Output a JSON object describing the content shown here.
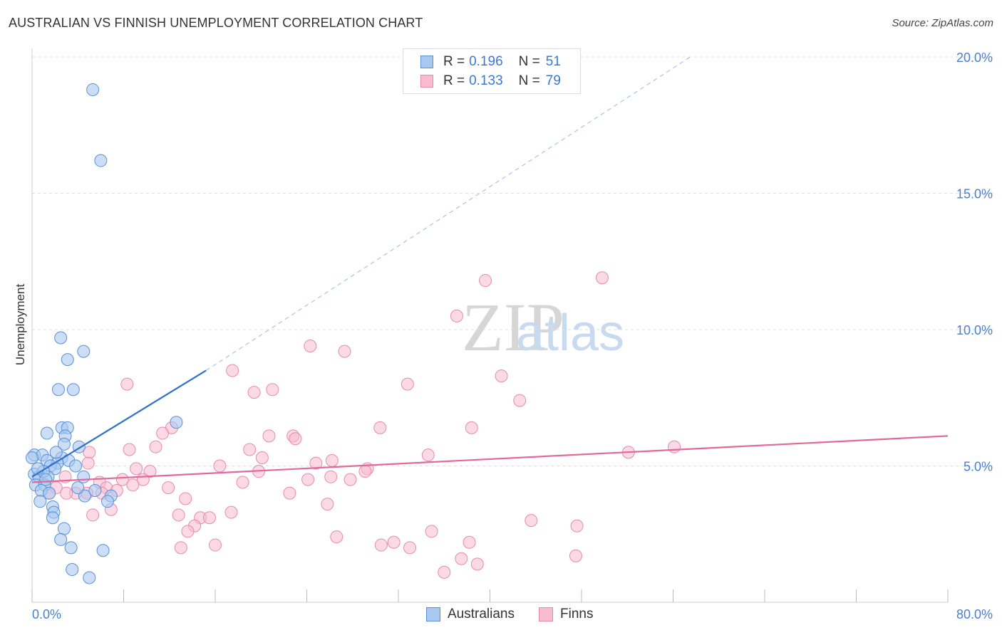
{
  "title": "AUSTRALIAN VS FINNISH UNEMPLOYMENT CORRELATION CHART",
  "source": "Source: ZipAtlas.com",
  "watermark": {
    "zip": "ZIP",
    "atlas": "atlas"
  },
  "legend": {
    "rows": [
      {
        "r_label": "R =",
        "r_value": "0.196",
        "n_label": "N =",
        "n_value": "51"
      },
      {
        "r_label": "R =",
        "r_value": "0.133",
        "n_label": "N =",
        "n_value": "79"
      }
    ]
  },
  "bottom_legend": {
    "australians": "Australians",
    "finns": "Finns"
  },
  "colors": {
    "australians_fill": "#a9c8f0",
    "australians_stroke": "#5a90d8",
    "australians_line": "#2f72cc",
    "finns_fill": "#f7bcd0",
    "finns_stroke": "#e88aaa",
    "finns_line": "#e06a98",
    "tick_text": "#4a7fd0",
    "grid": "#dddddd"
  },
  "chart_data": {
    "type": "scatter",
    "title": "AUSTRALIAN VS FINNISH UNEMPLOYMENT CORRELATION CHART",
    "xlabel": "",
    "ylabel": "Unemployment",
    "xlim": [
      0,
      80
    ],
    "ylim": [
      0,
      20
    ],
    "x_tick_labels": {
      "min": "0.0%",
      "max": "80.0%"
    },
    "y_ticks": [
      {
        "value": 5,
        "label": "5.0%"
      },
      {
        "value": 10,
        "label": "10.0%"
      },
      {
        "value": 15,
        "label": "15.0%"
      },
      {
        "value": 20,
        "label": "20.0%"
      }
    ],
    "series": [
      {
        "name": "Australians",
        "r": 0.196,
        "n": 51,
        "trend": {
          "x": [
            0,
            15.2
          ],
          "y": [
            4.6,
            8.5
          ],
          "extended_to": [
            57.5,
            20.0
          ]
        },
        "points": [
          [
            5.3,
            18.8
          ],
          [
            6.0,
            16.2
          ],
          [
            2.5,
            9.7
          ],
          [
            4.5,
            9.2
          ],
          [
            3.1,
            8.9
          ],
          [
            2.3,
            7.8
          ],
          [
            3.6,
            7.8
          ],
          [
            12.6,
            6.6
          ],
          [
            1.3,
            6.2
          ],
          [
            2.6,
            6.4
          ],
          [
            3.1,
            6.4
          ],
          [
            2.9,
            6.1
          ],
          [
            4.1,
            5.7
          ],
          [
            2.8,
            5.8
          ],
          [
            0.2,
            5.4
          ],
          [
            0.9,
            5.4
          ],
          [
            1.3,
            5.2
          ],
          [
            2.6,
            5.3
          ],
          [
            3.2,
            5.2
          ],
          [
            2.2,
            5.1
          ],
          [
            1.6,
            5.0
          ],
          [
            2.0,
            4.9
          ],
          [
            0.2,
            4.7
          ],
          [
            0.6,
            4.6
          ],
          [
            1.4,
            4.6
          ],
          [
            4.5,
            4.6
          ],
          [
            0.3,
            4.3
          ],
          [
            1.1,
            4.3
          ],
          [
            0.8,
            4.1
          ],
          [
            1.5,
            4.0
          ],
          [
            5.5,
            4.1
          ],
          [
            4.6,
            3.9
          ],
          [
            6.9,
            3.9
          ],
          [
            4.0,
            4.2
          ],
          [
            0.7,
            3.7
          ],
          [
            1.8,
            3.5
          ],
          [
            1.9,
            3.3
          ],
          [
            1.8,
            3.1
          ],
          [
            6.6,
            3.7
          ],
          [
            2.8,
            2.7
          ],
          [
            2.5,
            2.3
          ],
          [
            3.4,
            2.0
          ],
          [
            6.2,
            1.9
          ],
          [
            3.5,
            1.2
          ],
          [
            5.0,
            0.9
          ],
          [
            0.0,
            5.3
          ],
          [
            1.0,
            4.8
          ],
          [
            1.2,
            4.5
          ],
          [
            2.1,
            5.5
          ],
          [
            0.5,
            4.9
          ],
          [
            3.8,
            5.0
          ]
        ]
      },
      {
        "name": "Finns",
        "r": 0.133,
        "n": 79,
        "trend": {
          "x": [
            0,
            80
          ],
          "y": [
            4.4,
            6.1
          ]
        },
        "points": [
          [
            39.6,
            11.8
          ],
          [
            49.8,
            11.9
          ],
          [
            37.1,
            10.5
          ],
          [
            24.3,
            9.4
          ],
          [
            27.3,
            9.2
          ],
          [
            17.5,
            8.5
          ],
          [
            41.0,
            8.3
          ],
          [
            8.3,
            8.0
          ],
          [
            32.8,
            8.0
          ],
          [
            19.4,
            7.7
          ],
          [
            21.0,
            7.8
          ],
          [
            42.6,
            7.4
          ],
          [
            30.4,
            6.4
          ],
          [
            38.4,
            6.4
          ],
          [
            12.2,
            6.4
          ],
          [
            11.4,
            6.2
          ],
          [
            20.7,
            6.1
          ],
          [
            22.8,
            6.1
          ],
          [
            23.0,
            6.0
          ],
          [
            10.8,
            5.7
          ],
          [
            8.5,
            5.6
          ],
          [
            19.0,
            5.6
          ],
          [
            56.1,
            5.7
          ],
          [
            5.0,
            5.5
          ],
          [
            34.6,
            5.4
          ],
          [
            52.1,
            5.5
          ],
          [
            20.1,
            5.3
          ],
          [
            26.2,
            5.2
          ],
          [
            24.8,
            5.1
          ],
          [
            4.9,
            5.1
          ],
          [
            16.4,
            5.0
          ],
          [
            29.3,
            4.9
          ],
          [
            19.8,
            4.8
          ],
          [
            29.1,
            4.8
          ],
          [
            10.3,
            4.8
          ],
          [
            5.9,
            4.4
          ],
          [
            26.1,
            4.6
          ],
          [
            24.1,
            4.5
          ],
          [
            27.8,
            4.5
          ],
          [
            7.9,
            4.5
          ],
          [
            18.4,
            4.4
          ],
          [
            9.7,
            4.5
          ],
          [
            6.5,
            4.2
          ],
          [
            3.8,
            4.0
          ],
          [
            2.1,
            4.2
          ],
          [
            6.1,
            4.0
          ],
          [
            8.8,
            4.3
          ],
          [
            11.9,
            4.2
          ],
          [
            1.5,
            4.0
          ],
          [
            3.0,
            4.0
          ],
          [
            4.8,
            4.0
          ],
          [
            22.5,
            4.0
          ],
          [
            13.4,
            3.8
          ],
          [
            6.9,
            3.4
          ],
          [
            17.4,
            3.3
          ],
          [
            12.8,
            3.2
          ],
          [
            14.7,
            3.1
          ],
          [
            15.5,
            3.1
          ],
          [
            25.8,
            3.6
          ],
          [
            5.3,
            3.2
          ],
          [
            43.6,
            3.0
          ],
          [
            47.6,
            2.8
          ],
          [
            14.2,
            2.8
          ],
          [
            13.6,
            2.6
          ],
          [
            34.9,
            2.6
          ],
          [
            26.6,
            2.4
          ],
          [
            16.0,
            2.1
          ],
          [
            30.5,
            2.1
          ],
          [
            31.6,
            2.2
          ],
          [
            38.2,
            2.2
          ],
          [
            13.0,
            2.0
          ],
          [
            33.0,
            2.0
          ],
          [
            47.5,
            1.7
          ],
          [
            37.5,
            1.6
          ],
          [
            38.9,
            1.4
          ],
          [
            36.0,
            1.1
          ],
          [
            7.4,
            4.1
          ],
          [
            9.1,
            4.9
          ],
          [
            2.9,
            4.6
          ]
        ]
      }
    ]
  }
}
